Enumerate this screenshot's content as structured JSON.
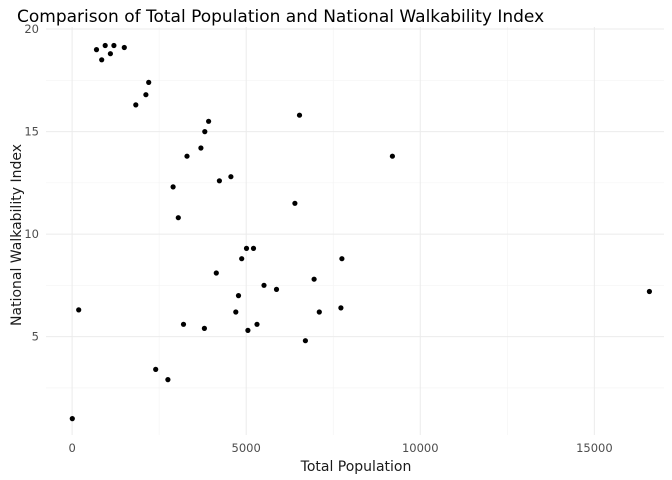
{
  "chart_data": {
    "type": "scatter",
    "title": "Comparison of Total Population and National Walkability Index",
    "xlabel": "Total Population",
    "ylabel": "National Walkability Index",
    "xlim": [
      -750,
      17000
    ],
    "ylim": [
      0.2,
      20.1
    ],
    "x_ticks": [
      0,
      5000,
      10000,
      15000
    ],
    "x_tick_labels": [
      "0",
      "5000",
      "10000",
      "15000"
    ],
    "y_ticks": [
      5,
      10,
      15,
      20
    ],
    "y_tick_labels": [
      "5",
      "10",
      "15",
      "20"
    ],
    "grid": true,
    "legend": "none",
    "point_color": "#000000",
    "points": [
      [
        16580,
        7.2
      ],
      [
        9200,
        13.8
      ],
      [
        6530,
        15.8
      ],
      [
        6400,
        11.5
      ],
      [
        7750,
        8.8
      ],
      [
        7720,
        6.4
      ],
      [
        7100,
        6.2
      ],
      [
        6950,
        7.8
      ],
      [
        5870,
        7.3
      ],
      [
        5510,
        7.5
      ],
      [
        5310,
        5.6
      ],
      [
        5210,
        9.3
      ],
      [
        5010,
        9.3
      ],
      [
        5050,
        5.3
      ],
      [
        4870,
        8.8
      ],
      [
        4780,
        7.0
      ],
      [
        4700,
        6.2
      ],
      [
        4560,
        12.8
      ],
      [
        4230,
        12.6
      ],
      [
        4140,
        8.1
      ],
      [
        3920,
        15.5
      ],
      [
        3810,
        15.0
      ],
      [
        3700,
        14.2
      ],
      [
        3300,
        13.8
      ],
      [
        3050,
        10.8
      ],
      [
        2900,
        12.3
      ],
      [
        6,
        1.0
      ],
      [
        190,
        6.3
      ],
      [
        6700,
        4.8
      ],
      [
        3800,
        5.4
      ],
      [
        3200,
        5.6
      ],
      [
        2750,
        2.9
      ],
      [
        2400,
        3.4
      ],
      [
        2200,
        17.4
      ],
      [
        2120,
        16.8
      ],
      [
        1830,
        16.3
      ],
      [
        1500,
        19.1
      ],
      [
        1200,
        19.2
      ],
      [
        1100,
        18.8
      ],
      [
        950,
        19.2
      ],
      [
        700,
        19.0
      ],
      [
        850,
        18.5
      ]
    ]
  }
}
